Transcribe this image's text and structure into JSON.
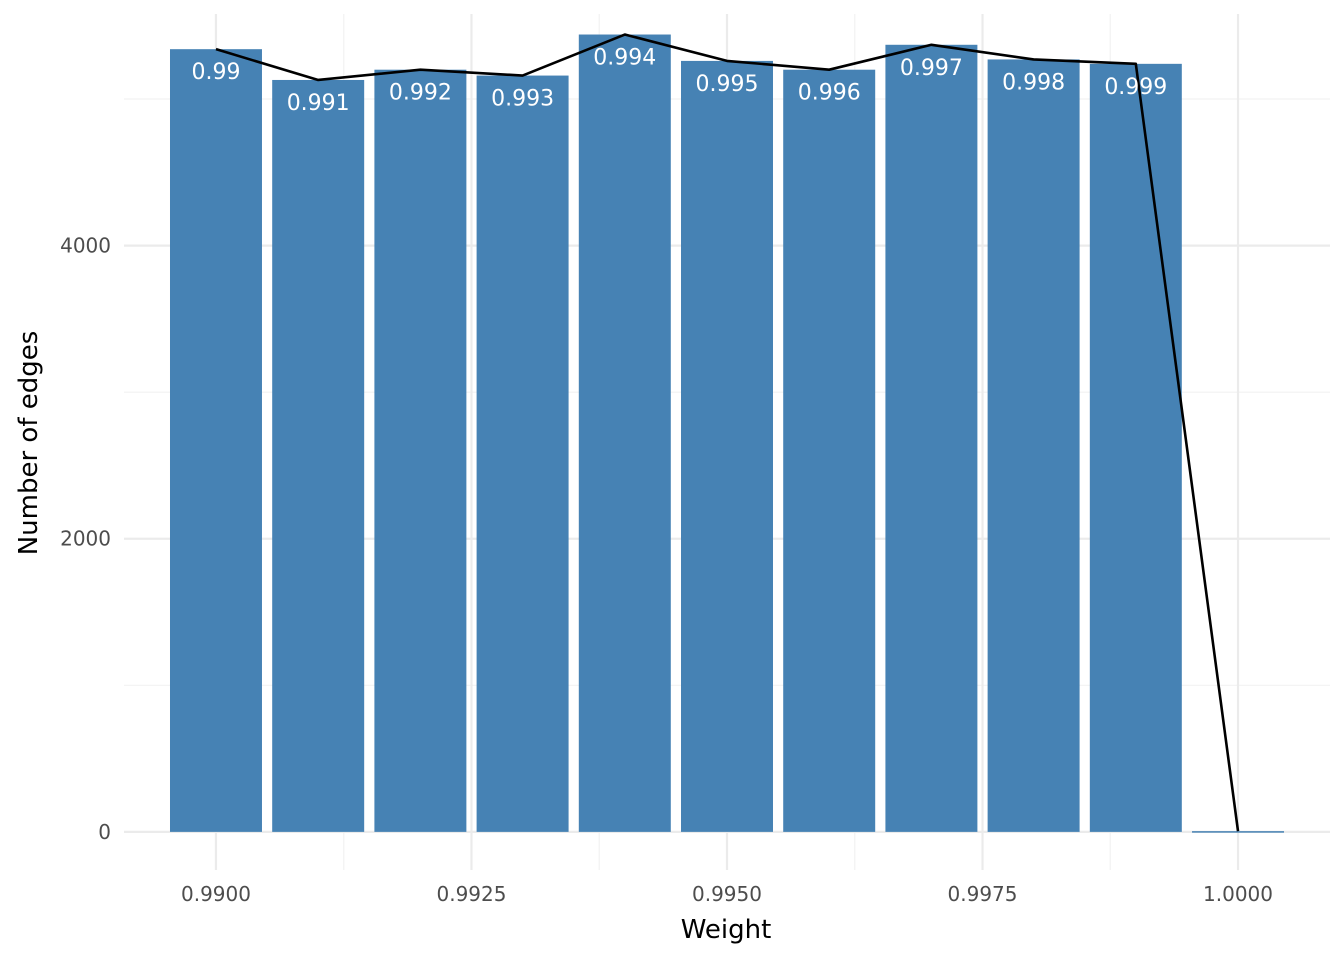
{
  "chart_data": {
    "type": "bar",
    "title": "",
    "xlabel": "Weight",
    "ylabel": "Number of edges",
    "xlim": [
      0.9891,
      1.0009
    ],
    "ylim": [
      -260,
      5580
    ],
    "x_ticks": [
      0.99,
      0.9925,
      0.995,
      0.9975,
      1.0
    ],
    "x_tick_labels": [
      "0.9900",
      "0.9925",
      "0.9950",
      "0.9975",
      "1.0000"
    ],
    "x_minor_ticks": [
      0.99125,
      0.99375,
      0.99625,
      0.99875
    ],
    "y_ticks": [
      0,
      2000,
      4000
    ],
    "y_tick_labels": [
      "0",
      "2000",
      "4000"
    ],
    "y_minor_ticks": [
      1000,
      3000,
      5000
    ],
    "grid": true,
    "bar_width": 0.0009,
    "x": [
      0.99,
      0.991,
      0.992,
      0.993,
      0.994,
      0.995,
      0.996,
      0.997,
      0.998,
      0.999,
      1.0
    ],
    "values": [
      5340,
      5130,
      5200,
      5160,
      5440,
      5260,
      5200,
      5370,
      5270,
      5240,
      5
    ],
    "bar_labels": [
      "0.99",
      "0.991",
      "0.992",
      "0.993",
      "0.994",
      "0.995",
      "0.996",
      "0.997",
      "0.998",
      "0.999",
      ""
    ],
    "line_values": [
      5340,
      5130,
      5200,
      5160,
      5440,
      5260,
      5200,
      5370,
      5270,
      5240,
      5
    ],
    "colors": {
      "bar": "#4682b4",
      "line": "#000000",
      "grid_major": "#ebebeb",
      "grid_minor": "#f2f2f2",
      "bar_label": "#ffffff"
    }
  }
}
